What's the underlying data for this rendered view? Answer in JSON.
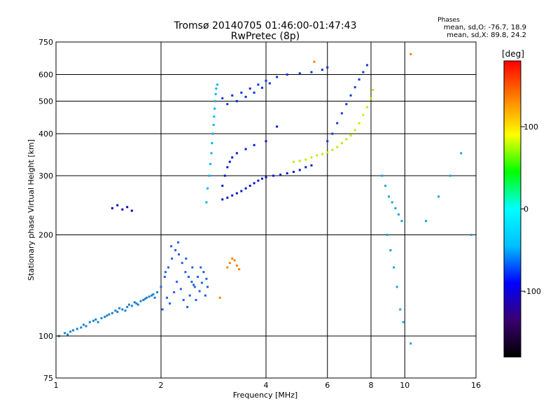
{
  "chart_data": {
    "type": "scatter",
    "title": "Tromsø 20140705 01:46:00-01:47:43",
    "subtitle": "RwPretec (8p)",
    "xlabel": "Frequency [MHz]",
    "ylabel": "Stationary phase Virtual Height [km]",
    "x_scale": "log",
    "y_scale": "log",
    "xlim": [
      1,
      16
    ],
    "ylim": [
      75,
      750
    ],
    "x_ticks": [
      1,
      2,
      4,
      6,
      8,
      10,
      16
    ],
    "y_ticks": [
      75,
      100,
      200,
      300,
      400,
      500,
      600,
      750
    ],
    "x_tick_labels": [
      "1",
      "2",
      "4",
      "6",
      "8",
      "10",
      "16"
    ],
    "y_tick_labels": [
      "75",
      "100",
      "200",
      "300",
      "400",
      "500",
      "600",
      "750"
    ],
    "grid": true,
    "phases": {
      "title": "Phases",
      "line_o": "mean, sd,O: -76.7, 18.9",
      "line_x": "mean, sd,X: 89.8, 24.2"
    },
    "colorbar": {
      "label": "[deg]",
      "ticks": [
        100,
        0,
        -100
      ],
      "tick_labels": [
        "100",
        "0",
        "-100"
      ],
      "range": [
        -180,
        180
      ],
      "colors": [
        "#000000",
        "#3a0070",
        "#0000ff",
        "#00bfff",
        "#00ffff",
        "#00ff00",
        "#ffff00",
        "#ff8000",
        "#ff0000"
      ]
    },
    "series": [
      {
        "color": "#1a80d0",
        "points": [
          [
            1.02,
            100
          ],
          [
            1.06,
            102
          ],
          [
            1.1,
            103
          ],
          [
            1.15,
            105
          ],
          [
            1.2,
            108
          ],
          [
            1.25,
            110
          ],
          [
            1.3,
            112
          ],
          [
            1.35,
            113
          ],
          [
            1.4,
            115
          ],
          [
            1.45,
            117
          ],
          [
            1.5,
            118
          ],
          [
            1.55,
            120
          ],
          [
            1.6,
            122
          ],
          [
            1.65,
            123
          ],
          [
            1.7,
            125
          ],
          [
            1.75,
            127
          ],
          [
            1.8,
            129
          ],
          [
            1.85,
            131
          ],
          [
            1.9,
            133
          ],
          [
            1.95,
            135
          ],
          [
            1.08,
            101
          ],
          [
            1.12,
            104
          ],
          [
            1.18,
            106
          ],
          [
            1.22,
            107
          ],
          [
            1.28,
            111
          ],
          [
            1.32,
            110
          ],
          [
            1.38,
            114
          ],
          [
            1.42,
            116
          ],
          [
            1.48,
            119
          ],
          [
            1.52,
            121
          ],
          [
            1.58,
            119
          ],
          [
            1.62,
            124
          ],
          [
            1.68,
            126
          ],
          [
            1.72,
            124
          ],
          [
            1.78,
            128
          ],
          [
            1.82,
            130
          ],
          [
            1.88,
            132
          ],
          [
            1.92,
            130
          ]
        ]
      },
      {
        "color": "#2060e0",
        "points": [
          [
            2.0,
            140
          ],
          [
            2.05,
            150
          ],
          [
            2.1,
            160
          ],
          [
            2.15,
            170
          ],
          [
            2.2,
            180
          ],
          [
            2.25,
            175
          ],
          [
            2.3,
            165
          ],
          [
            2.35,
            155
          ],
          [
            2.4,
            150
          ],
          [
            2.45,
            145
          ],
          [
            2.5,
            140
          ],
          [
            2.55,
            150
          ],
          [
            2.6,
            160
          ],
          [
            2.65,
            155
          ],
          [
            2.7,
            148
          ],
          [
            2.02,
            120
          ],
          [
            2.08,
            130
          ],
          [
            2.12,
            125
          ],
          [
            2.18,
            135
          ],
          [
            2.22,
            145
          ],
          [
            2.28,
            138
          ],
          [
            2.32,
            128
          ],
          [
            2.38,
            122
          ],
          [
            2.42,
            132
          ],
          [
            2.48,
            142
          ],
          [
            2.52,
            128
          ],
          [
            2.58,
            136
          ],
          [
            2.62,
            144
          ],
          [
            2.68,
            132
          ],
          [
            2.72,
            140
          ],
          [
            2.06,
            155
          ],
          [
            2.14,
            185
          ],
          [
            2.24,
            190
          ],
          [
            2.36,
            170
          ],
          [
            2.46,
            160
          ]
        ]
      },
      {
        "color": "#00b8e8",
        "points": [
          [
            2.7,
            250
          ],
          [
            2.72,
            275
          ],
          [
            2.75,
            300
          ],
          [
            2.77,
            325
          ],
          [
            2.79,
            350
          ],
          [
            2.8,
            375
          ],
          [
            2.82,
            400
          ],
          [
            2.83,
            425
          ],
          [
            2.84,
            450
          ],
          [
            2.85,
            475
          ],
          [
            2.86,
            500
          ],
          [
            2.87,
            525
          ],
          [
            2.88,
            545
          ],
          [
            2.9,
            560
          ]
        ]
      },
      {
        "color": "#0018c8",
        "points": [
          [
            3.0,
            255
          ],
          [
            3.1,
            258
          ],
          [
            3.2,
            262
          ],
          [
            3.3,
            266
          ],
          [
            3.4,
            270
          ],
          [
            3.5,
            275
          ],
          [
            3.6,
            280
          ],
          [
            3.7,
            285
          ],
          [
            3.8,
            290
          ],
          [
            3.9,
            294
          ],
          [
            4.0,
            297
          ],
          [
            4.2,
            300
          ],
          [
            4.4,
            302
          ],
          [
            4.6,
            305
          ],
          [
            4.8,
            308
          ],
          [
            5.0,
            312
          ],
          [
            5.2,
            318
          ],
          [
            5.4,
            322
          ],
          [
            3.0,
            280
          ],
          [
            3.05,
            300
          ],
          [
            3.1,
            318
          ],
          [
            3.15,
            330
          ],
          [
            3.2,
            340
          ],
          [
            3.3,
            350
          ],
          [
            3.5,
            360
          ],
          [
            3.7,
            370
          ],
          [
            4.0,
            380
          ],
          [
            4.3,
            420
          ]
        ]
      },
      {
        "color": "#0030e0",
        "points": [
          [
            3.0,
            510
          ],
          [
            3.2,
            520
          ],
          [
            3.4,
            530
          ],
          [
            3.6,
            545
          ],
          [
            3.8,
            560
          ],
          [
            4.0,
            575
          ],
          [
            4.3,
            590
          ],
          [
            4.6,
            600
          ],
          [
            5.0,
            605
          ],
          [
            5.4,
            610
          ],
          [
            5.8,
            620
          ],
          [
            6.0,
            630
          ],
          [
            3.1,
            490
          ],
          [
            3.3,
            500
          ],
          [
            3.5,
            515
          ],
          [
            3.7,
            530
          ],
          [
            3.9,
            548
          ],
          [
            4.1,
            565
          ]
        ]
      },
      {
        "color": "#c8e800",
        "points": [
          [
            4.8,
            330
          ],
          [
            5.0,
            332
          ],
          [
            5.2,
            335
          ],
          [
            5.4,
            340
          ],
          [
            5.6,
            345
          ],
          [
            5.8,
            348
          ],
          [
            6.0,
            352
          ],
          [
            6.2,
            358
          ],
          [
            6.4,
            365
          ],
          [
            6.6,
            375
          ],
          [
            6.8,
            385
          ],
          [
            7.0,
            395
          ],
          [
            7.2,
            410
          ],
          [
            7.4,
            430
          ],
          [
            7.6,
            455
          ],
          [
            7.8,
            480
          ],
          [
            8.0,
            510
          ],
          [
            8.1,
            540
          ]
        ]
      },
      {
        "color": "#1038d8",
        "points": [
          [
            6.0,
            380
          ],
          [
            6.2,
            400
          ],
          [
            6.4,
            430
          ],
          [
            6.6,
            460
          ],
          [
            6.8,
            490
          ],
          [
            7.0,
            520
          ],
          [
            7.2,
            550
          ],
          [
            7.4,
            580
          ],
          [
            7.6,
            610
          ],
          [
            7.8,
            640
          ]
        ]
      },
      {
        "color": "#ff8000",
        "points": [
          [
            3.1,
            160
          ],
          [
            3.15,
            165
          ],
          [
            3.2,
            170
          ],
          [
            3.25,
            168
          ],
          [
            3.3,
            162
          ],
          [
            3.35,
            158
          ],
          [
            2.95,
            130
          ],
          [
            5.5,
            655
          ],
          [
            10.4,
            690
          ]
        ]
      },
      {
        "color": "#0000c0",
        "points": [
          [
            1.45,
            240
          ],
          [
            1.5,
            245
          ],
          [
            1.55,
            238
          ],
          [
            1.6,
            242
          ],
          [
            1.65,
            236
          ]
        ]
      },
      {
        "color": "#20a0e0",
        "points": [
          [
            8.6,
            300
          ],
          [
            8.8,
            280
          ],
          [
            9.0,
            260
          ],
          [
            9.2,
            250
          ],
          [
            9.4,
            240
          ],
          [
            9.6,
            230
          ],
          [
            9.8,
            220
          ],
          [
            8.9,
            200
          ],
          [
            9.1,
            180
          ],
          [
            9.3,
            160
          ],
          [
            9.5,
            140
          ],
          [
            9.7,
            120
          ],
          [
            9.9,
            110
          ],
          [
            10.4,
            95
          ],
          [
            11.5,
            220
          ],
          [
            12.5,
            260
          ],
          [
            13.5,
            300
          ],
          [
            14.5,
            350
          ],
          [
            15.5,
            200
          ]
        ]
      }
    ]
  }
}
